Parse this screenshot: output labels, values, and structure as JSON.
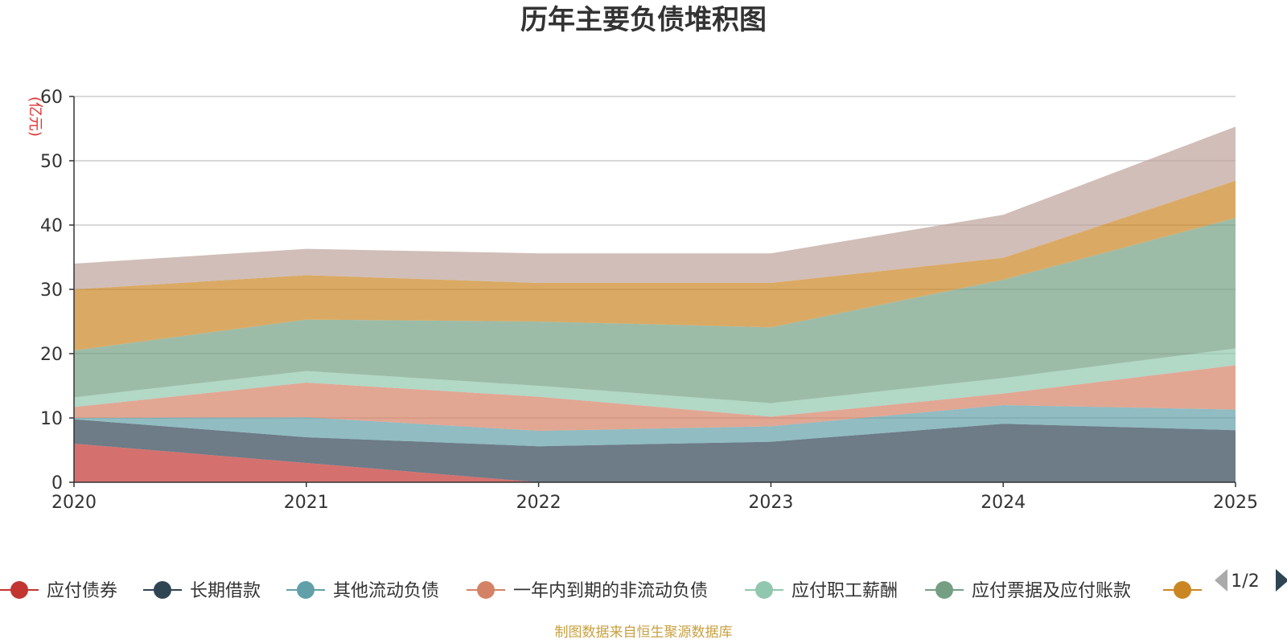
{
  "chart_data": {
    "type": "area",
    "stacked": true,
    "title": "历年主要负债堆积图",
    "ylabel": "(亿元)",
    "xlabel": "",
    "ylim": [
      0,
      60
    ],
    "yticks": [
      0,
      10,
      20,
      30,
      40,
      50,
      60
    ],
    "x": [
      "2020",
      "2021",
      "2022",
      "2023",
      "2024",
      "2025"
    ],
    "grid": true,
    "series": [
      {
        "name": "应付债券",
        "color": "#c23531",
        "values": [
          6.0,
          3.0,
          0.0,
          0.0,
          0.0,
          0.0
        ]
      },
      {
        "name": "长期借款",
        "color": "#2f4554",
        "values": [
          3.8,
          4.0,
          5.6,
          6.3,
          9.1,
          8.1
        ]
      },
      {
        "name": "其他流动负债",
        "color": "#61a0a8",
        "values": [
          0.2,
          3.1,
          2.4,
          2.4,
          2.9,
          3.2
        ]
      },
      {
        "name": "一年内到期的非流动负债",
        "color": "#d48265",
        "values": [
          1.7,
          5.4,
          5.3,
          1.5,
          1.8,
          6.9
        ]
      },
      {
        "name": "应付职工薪酬",
        "color": "#91c7ae",
        "values": [
          1.5,
          1.8,
          1.7,
          2.1,
          2.4,
          2.6
        ]
      },
      {
        "name": "应付票据及应付账款",
        "color": "#749f83",
        "values": [
          7.3,
          8.0,
          10.0,
          11.8,
          15.3,
          20.3
        ]
      },
      {
        "name": "",
        "color": "#ca8622",
        "values": [
          9.5,
          6.9,
          6.0,
          6.9,
          3.4,
          5.8
        ]
      },
      {
        "name": "",
        "color": "#bda29a",
        "values": [
          4.0,
          4.1,
          4.6,
          4.6,
          6.7,
          8.4
        ]
      }
    ],
    "legend": {
      "position": "bottom",
      "page": "1/2"
    },
    "source_note": "制图数据来自恒生聚源数据库",
    "colors": {
      "axis": "#333333",
      "grid": "#cccccc",
      "unit": "#e03030",
      "source": "#c8a040",
      "pager_active": "#2f4554",
      "pager_inactive": "#aaaaaa"
    }
  }
}
